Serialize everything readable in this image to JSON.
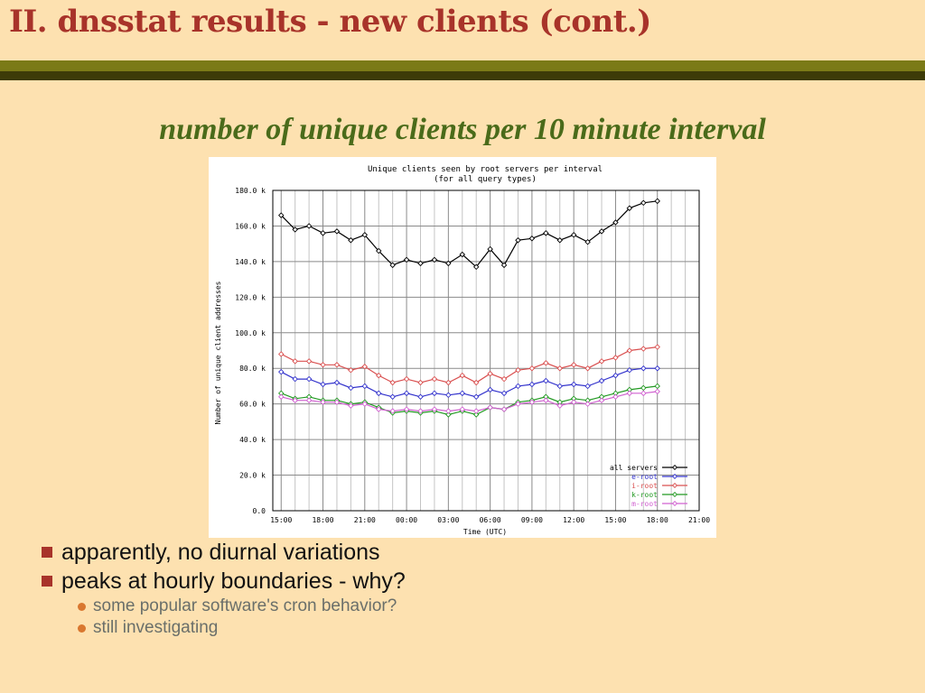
{
  "slide": {
    "title": "II. dnsstat results - new clients (cont.)",
    "subtitle": "number of unique clients per 10 minute interval",
    "bullets": [
      {
        "text": "apparently, no diurnal variations",
        "sub": []
      },
      {
        "text": "peaks at hourly boundaries - why?",
        "sub": [
          "some popular software's cron behavior?",
          "still investigating"
        ]
      }
    ]
  },
  "chart_data": {
    "type": "line",
    "title": "Unique clients seen by root servers per interval",
    "subtitle": "(for all query types)",
    "xlabel": "Time (UTC)",
    "ylabel": "Number of unique client addresses",
    "x_unit": "hours since 15:00 UTC",
    "xlim": [
      -0.6,
      30
    ],
    "ylim": [
      0,
      180000
    ],
    "x_ticks": [
      "15:00",
      "18:00",
      "21:00",
      "00:00",
      "03:00",
      "06:00",
      "09:00",
      "12:00",
      "15:00",
      "18:00",
      "21:00"
    ],
    "y_ticks": [
      "0.0",
      "20.0 k",
      "40.0 k",
      "60.0 k",
      "80.0 k",
      "100.0 k",
      "120.0 k",
      "140.0 k",
      "160.0 k",
      "180.0 k"
    ],
    "grid": true,
    "legend_position": "bottom-right",
    "series": [
      {
        "name": "all servers",
        "color": "#000000",
        "marker": "diamond",
        "x": [
          0,
          1,
          2,
          3,
          4,
          5,
          6,
          7,
          8,
          9,
          10,
          11,
          12,
          13,
          14,
          15,
          16,
          17,
          18,
          19,
          20,
          21,
          22,
          23,
          24,
          25,
          26,
          27
        ],
        "values": [
          166000,
          158000,
          160000,
          156000,
          157000,
          152000,
          155000,
          146000,
          138000,
          141000,
          139000,
          141000,
          139000,
          144000,
          137000,
          147000,
          138000,
          152000,
          153000,
          156000,
          152000,
          155000,
          151000,
          157000,
          162000,
          170000,
          173000,
          174000
        ]
      },
      {
        "name": "e-root",
        "color": "#3333cc",
        "marker": "diamond",
        "x": [
          0,
          1,
          2,
          3,
          4,
          5,
          6,
          7,
          8,
          9,
          10,
          11,
          12,
          13,
          14,
          15,
          16,
          17,
          18,
          19,
          20,
          21,
          22,
          23,
          24,
          25,
          26,
          27
        ],
        "values": [
          78000,
          74000,
          74000,
          71000,
          72000,
          69000,
          70000,
          66000,
          64000,
          66000,
          64000,
          66000,
          65000,
          66000,
          64000,
          68000,
          66000,
          70000,
          71000,
          73000,
          70000,
          71000,
          70000,
          73000,
          76000,
          79000,
          80000,
          80000
        ]
      },
      {
        "name": "i-root",
        "color": "#d95050",
        "marker": "diamond",
        "x": [
          0,
          1,
          2,
          3,
          4,
          5,
          6,
          7,
          8,
          9,
          10,
          11,
          12,
          13,
          14,
          15,
          16,
          17,
          18,
          19,
          20,
          21,
          22,
          23,
          24,
          25,
          26,
          27
        ],
        "values": [
          88000,
          84000,
          84000,
          82000,
          82000,
          79000,
          81000,
          76000,
          72000,
          74000,
          72000,
          74000,
          72000,
          76000,
          72000,
          77000,
          74000,
          79000,
          80000,
          83000,
          80000,
          82000,
          80000,
          84000,
          86000,
          90000,
          91000,
          92000
        ]
      },
      {
        "name": "k-root",
        "color": "#229922",
        "marker": "diamond",
        "x": [
          0,
          1,
          2,
          3,
          4,
          5,
          6,
          7,
          8,
          9,
          10,
          11,
          12,
          13,
          14,
          15,
          16,
          17,
          18,
          19,
          20,
          21,
          22,
          23,
          24,
          25,
          26,
          27
        ],
        "values": [
          66000,
          63000,
          64000,
          62000,
          62000,
          60000,
          61000,
          58000,
          55000,
          56000,
          55000,
          56000,
          54000,
          56000,
          54000,
          58000,
          57000,
          61000,
          62000,
          64000,
          61000,
          63000,
          62000,
          64000,
          66000,
          68000,
          69000,
          70000
        ]
      },
      {
        "name": "m-root",
        "color": "#d060d0",
        "marker": "diamond",
        "x": [
          0,
          1,
          2,
          3,
          4,
          5,
          6,
          7,
          8,
          9,
          10,
          11,
          12,
          13,
          14,
          15,
          16,
          17,
          18,
          19,
          20,
          21,
          22,
          23,
          24,
          25,
          26,
          27
        ],
        "values": [
          64000,
          62000,
          62000,
          61000,
          61000,
          59000,
          60000,
          57000,
          56000,
          57000,
          56000,
          57000,
          56000,
          57000,
          56000,
          58000,
          57000,
          60000,
          61000,
          62000,
          59000,
          61000,
          60000,
          62000,
          64000,
          66000,
          66000,
          67000
        ]
      }
    ]
  }
}
